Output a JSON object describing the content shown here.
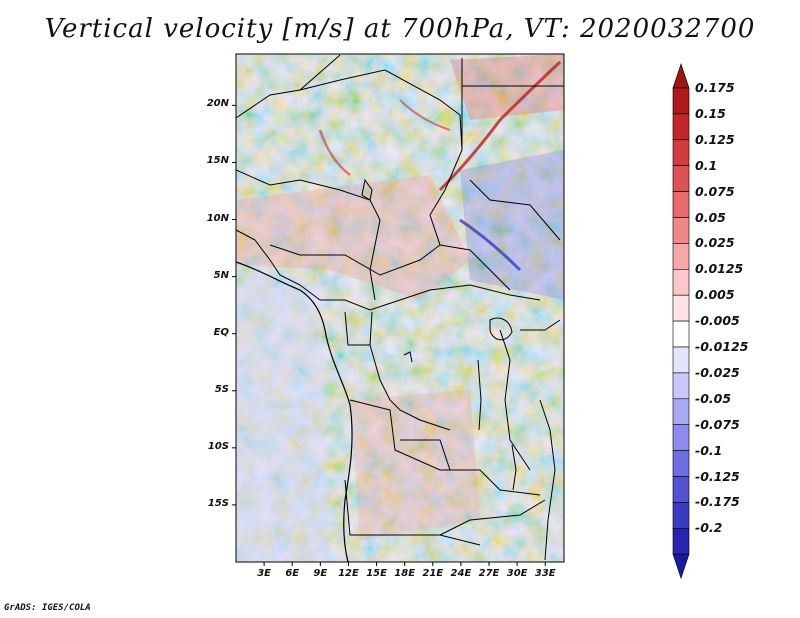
{
  "title": "Vertical velocity [m/s] at 700hPa, VT: 2020032700",
  "credit": "GrADS: IGES/COLA",
  "map": {
    "variable": "Vertical velocity",
    "units": "m/s",
    "level": "700hPa",
    "valid_time": "2020032700",
    "lon_range": [
      0,
      35
    ],
    "lat_range": [
      -20,
      24.5
    ],
    "lat_ticks": [
      {
        "value": 20,
        "label": "20N"
      },
      {
        "value": 15,
        "label": "15N"
      },
      {
        "value": 10,
        "label": "10N"
      },
      {
        "value": 5,
        "label": "5N"
      },
      {
        "value": 0,
        "label": "EQ"
      },
      {
        "value": -5,
        "label": "5S"
      },
      {
        "value": -10,
        "label": "10S"
      },
      {
        "value": -15,
        "label": "15S"
      }
    ],
    "lon_ticks": [
      {
        "value": 3,
        "label": "3E"
      },
      {
        "value": 6,
        "label": "6E"
      },
      {
        "value": 9,
        "label": "9E"
      },
      {
        "value": 12,
        "label": "12E"
      },
      {
        "value": 15,
        "label": "15E"
      },
      {
        "value": 18,
        "label": "18E"
      },
      {
        "value": 21,
        "label": "21E"
      },
      {
        "value": 24,
        "label": "24E"
      },
      {
        "value": 27,
        "label": "27E"
      },
      {
        "value": 30,
        "label": "30E"
      },
      {
        "value": 33,
        "label": "33E"
      }
    ]
  },
  "colorbar": {
    "levels": [
      {
        "label": "0.175",
        "color": "#b01a1a"
      },
      {
        "label": "0.15",
        "color": "#c22828"
      },
      {
        "label": "0.125",
        "color": "#d23c3c"
      },
      {
        "label": "0.1",
        "color": "#de5252"
      },
      {
        "label": "0.075",
        "color": "#e86a6a"
      },
      {
        "label": "0.05",
        "color": "#f08888"
      },
      {
        "label": "0.025",
        "color": "#f6a8a8"
      },
      {
        "label": "0.0125",
        "color": "#fac8c8"
      },
      {
        "label": "0.005",
        "color": "#fde4e4"
      },
      {
        "label": "-0.005",
        "color": "#ffffff"
      },
      {
        "label": "-0.0125",
        "color": "#e4e4fd"
      },
      {
        "label": "-0.025",
        "color": "#c8c8fa"
      },
      {
        "label": "-0.05",
        "color": "#aaaaf4"
      },
      {
        "label": "-0.075",
        "color": "#8c8cec"
      },
      {
        "label": "-0.1",
        "color": "#6e6ee0"
      },
      {
        "label": "-0.125",
        "color": "#5252d2"
      },
      {
        "label": "-0.175",
        "color": "#3a3ac2"
      },
      {
        "label": "-0.2",
        "color": "#2626b0"
      }
    ],
    "top_cap_color": "#a01414",
    "bottom_cap_color": "#1a1aa0"
  }
}
